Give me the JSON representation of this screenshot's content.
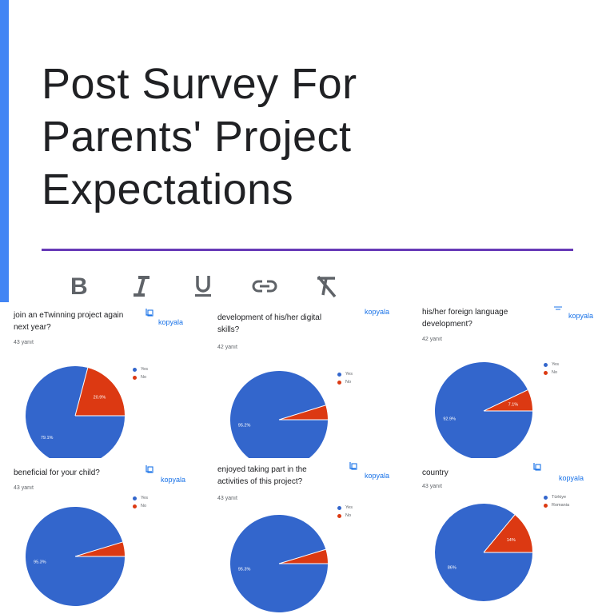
{
  "form": {
    "title_line1": "Post Survey For",
    "title_line2": "Parents' Project",
    "title_line3": "Expectations"
  },
  "toolbar": {
    "bold_label": "B",
    "italic_label": "I",
    "underline_label": "U",
    "link_icon": "link-icon",
    "clear_format_icon": "clear-formatting-icon"
  },
  "colors": {
    "accent": "#4285f4",
    "title_underline": "#673ab7",
    "pie_blue": "#3366cc",
    "pie_red": "#dc3912",
    "copy_link": "#1a73e8"
  },
  "cards": [
    {
      "question": "join an eTwinning project again next year?",
      "count": "43 yanıt",
      "copy_label": "kopyala",
      "chart_data": {
        "type": "pie",
        "legend": [
          "Yes",
          "No"
        ],
        "values": [
          79.1,
          20.9
        ],
        "slice_labels": [
          "79.1%",
          "20.9%"
        ]
      }
    },
    {
      "question": "development of his/her digital skills?",
      "count": "42 yanıt",
      "copy_label": "kopyala",
      "chart_data": {
        "type": "pie",
        "legend": [
          "Yes",
          "No"
        ],
        "values": [
          95.2,
          4.8
        ],
        "slice_labels": [
          "95.2%",
          ""
        ]
      }
    },
    {
      "question": "his/her foreign language development?",
      "count": "42 yanıt",
      "copy_label": "kopyala",
      "chart_data": {
        "type": "pie",
        "legend": [
          "Yes",
          "No"
        ],
        "values": [
          92.9,
          7.1
        ],
        "slice_labels": [
          "92.9%",
          "7.1%"
        ]
      }
    },
    {
      "question": "beneficial for your child?",
      "count": "43 yanıt",
      "copy_label": "kopyala",
      "chart_data": {
        "type": "pie",
        "legend": [
          "Yes",
          "No"
        ],
        "values": [
          95.3,
          4.7
        ],
        "slice_labels": [
          "95.3%",
          ""
        ]
      }
    },
    {
      "question": "enjoyed taking part in the activities of this project?",
      "count": "43 yanıt",
      "copy_label": "kopyala",
      "chart_data": {
        "type": "pie",
        "legend": [
          "Yes",
          "No"
        ],
        "values": [
          95.3,
          4.7
        ],
        "slice_labels": [
          "95.3%",
          ""
        ]
      }
    },
    {
      "question": "country",
      "count": "43 yanıt",
      "copy_label": "kopyala",
      "chart_data": {
        "type": "pie",
        "legend": [
          "Türkiye",
          "Romania"
        ],
        "values": [
          86,
          14
        ],
        "slice_labels": [
          "86%",
          "14%"
        ]
      }
    }
  ]
}
